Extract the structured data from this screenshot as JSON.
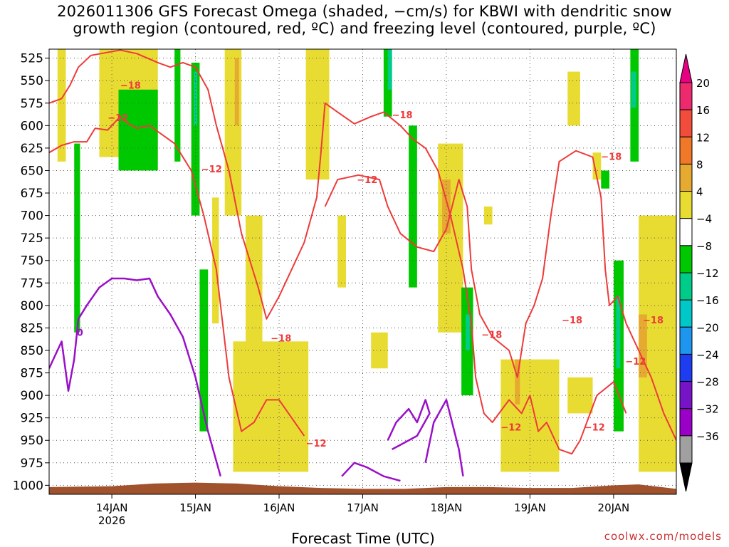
{
  "title_line1": "2026011306 GFS Forecast Omega (shaded, −cm/s) for KBWI with dendritic snow",
  "title_line2": "growth region (contoured, red, ºC) and freezing level (contoured, purple, ºC)",
  "xlabel": "Forecast Time (UTC)",
  "credit": "coolwx.com/models",
  "chart_data": {
    "type": "heatmap",
    "y_levels": [
      "525",
      "550",
      "575",
      "600",
      "625",
      "650",
      "675",
      "700",
      "725",
      "750",
      "775",
      "800",
      "825",
      "850",
      "875",
      "900",
      "925",
      "950",
      "975",
      "1000"
    ],
    "y_values": [
      525,
      550,
      575,
      600,
      625,
      650,
      675,
      700,
      725,
      750,
      775,
      800,
      825,
      850,
      875,
      900,
      925,
      950,
      975,
      1000
    ],
    "ylim": [
      515,
      1010
    ],
    "x_ticks": [
      {
        "label": "14JAN",
        "sub": "2026",
        "t": 0
      },
      {
        "label": "15JAN",
        "sub": "",
        "t": 1
      },
      {
        "label": "16JAN",
        "sub": "",
        "t": 2
      },
      {
        "label": "17JAN",
        "sub": "",
        "t": 3
      },
      {
        "label": "18JAN",
        "sub": "",
        "t": 4
      },
      {
        "label": "19JAN",
        "sub": "",
        "t": 5
      },
      {
        "label": "20JAN",
        "sub": "",
        "t": 6
      }
    ],
    "xlim_days": [
      -0.75,
      6.75
    ],
    "colorbar": {
      "labels": [
        "20",
        "16",
        "12",
        "8",
        "4",
        "−4",
        "−8",
        "−12",
        "−16",
        "−20",
        "−24",
        "−28",
        "−32",
        "−36"
      ],
      "colors": [
        "#ee2a6e",
        "#f24c3c",
        "#f07828",
        "#e6aa30",
        "#e8dc32",
        "#ffffff",
        "#00c800",
        "#00cc8a",
        "#00c8c8",
        "#1e96f0",
        "#1e3cf0",
        "#7814c8",
        "#9a00c8",
        "#a0a0a0"
      ],
      "top_arrow_color": "#e60082",
      "bottom_arrow_color": "#000000"
    },
    "colors": {
      "snow_growth_contour": "#ee3a3a",
      "freezing_level_contour": "#9a10c8",
      "terrain": "#a0522d",
      "weak_rise": "#e8dc32",
      "moderate_rise": "#e6aa30",
      "sinking": "#00c800",
      "strong_sinking": "#00cc8a"
    },
    "red_contour_labels": [
      {
        "text": "−18",
        "t": 0.1,
        "p": 555
      },
      {
        "text": "−12",
        "t": -0.05,
        "p": 591
      },
      {
        "text": "−12",
        "t": 1.07,
        "p": 648
      },
      {
        "text": "−18",
        "t": 1.9,
        "p": 836
      },
      {
        "text": "−12",
        "t": 2.32,
        "p": 953
      },
      {
        "text": "−12",
        "t": 2.93,
        "p": 660
      },
      {
        "text": "−18",
        "t": 3.35,
        "p": 588
      },
      {
        "text": "−18",
        "t": 4.42,
        "p": 832
      },
      {
        "text": "−12",
        "t": 4.65,
        "p": 935
      },
      {
        "text": "−18",
        "t": 5.38,
        "p": 816
      },
      {
        "text": "−18",
        "t": 5.85,
        "p": 634
      },
      {
        "text": "−12",
        "t": 5.65,
        "p": 935
      },
      {
        "text": "−12",
        "t": 6.14,
        "p": 862
      },
      {
        "text": "−18",
        "t": 6.35,
        "p": 816
      }
    ],
    "purple_contour_labels": [
      {
        "text": "0",
        "t": -0.42,
        "p": 830
      }
    ],
    "red_contours": [
      [
        [
          -0.75,
          630
        ],
        [
          -0.6,
          622
        ],
        [
          -0.45,
          618
        ],
        [
          -0.3,
          618
        ],
        [
          -0.2,
          603
        ],
        [
          -0.05,
          605
        ],
        [
          0.1,
          590
        ],
        [
          0.2,
          598
        ],
        [
          0.3,
          603
        ],
        [
          0.45,
          600
        ],
        [
          0.6,
          610
        ],
        [
          0.75,
          620
        ],
        [
          0.95,
          650
        ],
        [
          1.1,
          700
        ],
        [
          1.25,
          760
        ],
        [
          1.4,
          880
        ],
        [
          1.55,
          940
        ],
        [
          1.7,
          930
        ],
        [
          1.85,
          905
        ],
        [
          2.0,
          905
        ],
        [
          2.15,
          925
        ],
        [
          2.3,
          945
        ]
      ],
      [
        [
          -0.75,
          575
        ],
        [
          -0.6,
          570
        ],
        [
          -0.5,
          555
        ],
        [
          -0.4,
          535
        ],
        [
          -0.25,
          522
        ],
        [
          0.1,
          516
        ],
        [
          0.3,
          520
        ],
        [
          0.55,
          530
        ],
        [
          0.7,
          535
        ],
        [
          0.85,
          530
        ],
        [
          1.0,
          535
        ],
        [
          1.15,
          560
        ],
        [
          1.25,
          600
        ],
        [
          1.4,
          650
        ],
        [
          1.55,
          720
        ],
        [
          1.75,
          780
        ],
        [
          1.85,
          815
        ],
        [
          2.0,
          790
        ],
        [
          2.15,
          760
        ],
        [
          2.3,
          730
        ],
        [
          2.45,
          680
        ],
        [
          2.5,
          630
        ],
        [
          2.55,
          575
        ],
        [
          2.7,
          585
        ],
        [
          2.9,
          598
        ],
        [
          3.1,
          590
        ],
        [
          3.25,
          585
        ],
        [
          3.45,
          600
        ],
        [
          3.6,
          615
        ],
        [
          3.75,
          625
        ],
        [
          3.9,
          650
        ],
        [
          4.05,
          700
        ],
        [
          4.2,
          760
        ],
        [
          4.3,
          820
        ],
        [
          4.35,
          880
        ],
        [
          4.45,
          920
        ],
        [
          4.55,
          930
        ],
        [
          4.75,
          905
        ],
        [
          4.9,
          920
        ],
        [
          5.0,
          900
        ],
        [
          5.1,
          940
        ],
        [
          5.2,
          930
        ],
        [
          5.35,
          960
        ],
        [
          5.5,
          965
        ],
        [
          5.6,
          950
        ],
        [
          5.8,
          900
        ],
        [
          6.0,
          885
        ],
        [
          6.15,
          920
        ]
      ],
      [
        [
          2.55,
          690
        ],
        [
          2.7,
          660
        ],
        [
          2.95,
          655
        ],
        [
          3.2,
          660
        ],
        [
          3.3,
          690
        ],
        [
          3.45,
          720
        ],
        [
          3.65,
          735
        ],
        [
          3.85,
          740
        ],
        [
          4.0,
          715
        ],
        [
          4.15,
          660
        ],
        [
          4.25,
          690
        ],
        [
          4.3,
          760
        ],
        [
          4.4,
          810
        ],
        [
          4.55,
          835
        ],
        [
          4.75,
          850
        ],
        [
          4.85,
          880
        ],
        [
          4.95,
          820
        ],
        [
          5.05,
          800
        ],
        [
          5.15,
          770
        ],
        [
          5.25,
          700
        ],
        [
          5.35,
          640
        ],
        [
          5.55,
          628
        ],
        [
          5.75,
          635
        ],
        [
          5.85,
          680
        ],
        [
          5.9,
          760
        ],
        [
          5.95,
          800
        ],
        [
          6.05,
          790
        ],
        [
          6.15,
          820
        ],
        [
          6.3,
          850
        ],
        [
          6.45,
          880
        ],
        [
          6.6,
          920
        ],
        [
          6.75,
          950
        ]
      ]
    ],
    "purple_contours": [
      [
        [
          -0.75,
          870
        ],
        [
          -0.6,
          840
        ],
        [
          -0.52,
          895
        ],
        [
          -0.45,
          860
        ],
        [
          -0.4,
          815
        ],
        [
          -0.3,
          800
        ],
        [
          -0.15,
          780
        ],
        [
          0.0,
          770
        ],
        [
          0.15,
          770
        ],
        [
          0.3,
          772
        ],
        [
          0.45,
          770
        ],
        [
          0.55,
          790
        ],
        [
          0.7,
          810
        ],
        [
          0.85,
          835
        ],
        [
          1.0,
          880
        ],
        [
          1.15,
          940
        ],
        [
          1.3,
          990
        ]
      ],
      [
        [
          3.3,
          950
        ],
        [
          3.4,
          930
        ],
        [
          3.55,
          915
        ],
        [
          3.65,
          930
        ],
        [
          3.75,
          905
        ],
        [
          3.8,
          920
        ],
        [
          3.65,
          945
        ],
        [
          3.45,
          955
        ],
        [
          3.35,
          960
        ]
      ],
      [
        [
          3.75,
          975
        ],
        [
          3.85,
          930
        ],
        [
          4.0,
          905
        ],
        [
          4.15,
          960
        ],
        [
          4.2,
          990
        ]
      ],
      [
        [
          2.75,
          990
        ],
        [
          2.9,
          975
        ],
        [
          3.05,
          980
        ],
        [
          3.25,
          990
        ],
        [
          3.45,
          995
        ]
      ]
    ],
    "terrain_profile": [
      [
        -0.75,
        1002
      ],
      [
        0.0,
        1001
      ],
      [
        0.5,
        998
      ],
      [
        1.0,
        997
      ],
      [
        1.5,
        998
      ],
      [
        2.0,
        1001
      ],
      [
        2.5,
        1003
      ],
      [
        3.0,
        1004
      ],
      [
        3.5,
        1004
      ],
      [
        4.0,
        1002
      ],
      [
        4.5,
        1002
      ],
      [
        5.0,
        1003
      ],
      [
        5.5,
        1003
      ],
      [
        6.0,
        1000
      ],
      [
        6.3,
        999
      ],
      [
        6.75,
        1004
      ]
    ],
    "omega_patches": [
      {
        "c": "#e8dc32",
        "t0": -0.65,
        "t1": -0.55,
        "p0": 515,
        "p1": 640
      },
      {
        "c": "#e8dc32",
        "t0": -0.15,
        "t1": 0.55,
        "p0": 515,
        "p1": 635
      },
      {
        "c": "#00c800",
        "t0": 0.08,
        "t1": 0.55,
        "p0": 560,
        "p1": 650
      },
      {
        "c": "#00c800",
        "t0": -0.45,
        "t1": -0.38,
        "p0": 620,
        "p1": 830
      },
      {
        "c": "#00c800",
        "t0": 0.75,
        "t1": 0.82,
        "p0": 515,
        "p1": 640
      },
      {
        "c": "#00c800",
        "t0": 0.95,
        "t1": 1.05,
        "p0": 530,
        "p1": 700
      },
      {
        "c": "#00cc8a",
        "t0": 0.98,
        "t1": 1.02,
        "p0": 540,
        "p1": 600
      },
      {
        "c": "#00c800",
        "t0": 1.05,
        "t1": 1.15,
        "p0": 760,
        "p1": 940
      },
      {
        "c": "#e8dc32",
        "t0": 1.2,
        "t1": 1.28,
        "p0": 680,
        "p1": 820
      },
      {
        "c": "#e8dc32",
        "t0": 1.35,
        "t1": 1.55,
        "p0": 515,
        "p1": 700
      },
      {
        "c": "#e6aa30",
        "t0": 1.47,
        "t1": 1.52,
        "p0": 525,
        "p1": 600
      },
      {
        "c": "#e8dc32",
        "t0": 1.45,
        "t1": 2.35,
        "p0": 840,
        "p1": 985
      },
      {
        "c": "#e8dc32",
        "t0": 1.6,
        "t1": 1.8,
        "p0": 700,
        "p1": 850
      },
      {
        "c": "#e8dc32",
        "t0": 2.32,
        "t1": 2.6,
        "p0": 515,
        "p1": 660
      },
      {
        "c": "#e8dc32",
        "t0": 2.7,
        "t1": 2.8,
        "p0": 700,
        "p1": 780
      },
      {
        "c": "#e8dc32",
        "t0": 3.1,
        "t1": 3.3,
        "p0": 830,
        "p1": 870
      },
      {
        "c": "#00c800",
        "t0": 3.25,
        "t1": 3.35,
        "p0": 515,
        "p1": 590
      },
      {
        "c": "#00cc8a",
        "t0": 3.3,
        "t1": 3.35,
        "p0": 515,
        "p1": 560
      },
      {
        "c": "#00c800",
        "t0": 3.55,
        "t1": 3.65,
        "p0": 600,
        "p1": 780
      },
      {
        "c": "#e8dc32",
        "t0": 3.9,
        "t1": 4.2,
        "p0": 620,
        "p1": 830
      },
      {
        "c": "#e6aa30",
        "t0": 3.95,
        "t1": 4.05,
        "p0": 660,
        "p1": 720
      },
      {
        "c": "#00c800",
        "t0": 4.18,
        "t1": 4.32,
        "p0": 780,
        "p1": 900
      },
      {
        "c": "#00cc8a",
        "t0": 4.23,
        "t1": 4.28,
        "p0": 810,
        "p1": 850
      },
      {
        "c": "#e8dc32",
        "t0": 4.45,
        "t1": 4.55,
        "p0": 690,
        "p1": 710
      },
      {
        "c": "#e8dc32",
        "t0": 4.65,
        "t1": 5.35,
        "p0": 860,
        "p1": 985
      },
      {
        "c": "#e6aa30",
        "t0": 4.82,
        "t1": 4.88,
        "p0": 860,
        "p1": 910
      },
      {
        "c": "#e8dc32",
        "t0": 5.45,
        "t1": 5.6,
        "p0": 540,
        "p1": 600
      },
      {
        "c": "#e8dc32",
        "t0": 5.75,
        "t1": 5.85,
        "p0": 630,
        "p1": 660
      },
      {
        "c": "#00c800",
        "t0": 5.85,
        "t1": 5.95,
        "p0": 650,
        "p1": 670
      },
      {
        "c": "#e8dc32",
        "t0": 5.45,
        "t1": 5.75,
        "p0": 880,
        "p1": 920
      },
      {
        "c": "#00c800",
        "t0": 6.0,
        "t1": 6.12,
        "p0": 750,
        "p1": 940
      },
      {
        "c": "#00cc8a",
        "t0": 6.03,
        "t1": 6.08,
        "p0": 790,
        "p1": 870
      },
      {
        "c": "#e8dc32",
        "t0": 6.3,
        "t1": 6.75,
        "p0": 700,
        "p1": 985
      },
      {
        "c": "#e6aa30",
        "t0": 6.3,
        "t1": 6.4,
        "p0": 810,
        "p1": 880
      },
      {
        "c": "#00c800",
        "t0": 6.2,
        "t1": 6.3,
        "p0": 515,
        "p1": 640
      },
      {
        "c": "#00cc8a",
        "t0": 6.21,
        "t1": 6.27,
        "p0": 540,
        "p1": 580
      }
    ]
  }
}
